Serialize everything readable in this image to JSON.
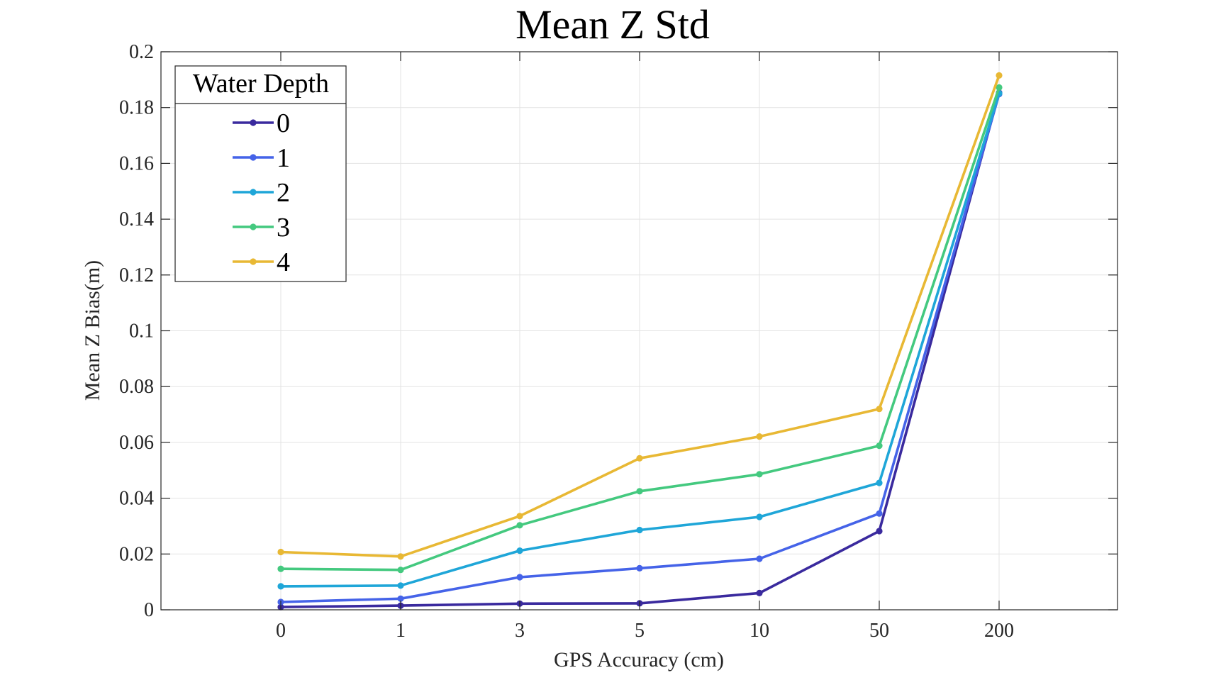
{
  "chart_data": {
    "type": "line",
    "title": "Mean Z Std",
    "xlabel": "GPS Accuracy (cm)",
    "ylabel": "Mean Z Bias(m)",
    "categories": [
      "0",
      "1",
      "3",
      "5",
      "10",
      "50",
      "200"
    ],
    "ylim": [
      0,
      0.2
    ],
    "yticks": [
      0,
      0.02,
      0.04,
      0.06,
      0.08,
      0.1,
      0.12,
      0.14,
      0.16,
      0.18,
      0.2
    ],
    "ytick_labels": [
      "0",
      "0.02",
      "0.04",
      "0.06",
      "0.08",
      "0.1",
      "0.12",
      "0.14",
      "0.16",
      "0.18",
      "0.2"
    ],
    "grid": true,
    "legend": {
      "title": "Water Depth",
      "placement": "top-left"
    },
    "series": [
      {
        "name": "0",
        "color": "#3a2a9e",
        "values": [
          0.001,
          0.0015,
          0.0022,
          0.0023,
          0.006,
          0.0282,
          0.1853
        ]
      },
      {
        "name": "1",
        "color": "#4563e8",
        "values": [
          0.0028,
          0.004,
          0.0117,
          0.0149,
          0.0183,
          0.0345,
          0.1848
        ]
      },
      {
        "name": "2",
        "color": "#1fa6d8",
        "values": [
          0.0084,
          0.0087,
          0.0212,
          0.0286,
          0.0333,
          0.0455,
          0.1851
        ]
      },
      {
        "name": "3",
        "color": "#44c97f",
        "values": [
          0.0147,
          0.0143,
          0.0303,
          0.0425,
          0.0486,
          0.0588,
          0.1872
        ]
      },
      {
        "name": "4",
        "color": "#e8b834",
        "values": [
          0.0207,
          0.0191,
          0.0336,
          0.0543,
          0.0621,
          0.072,
          0.1915
        ]
      }
    ]
  }
}
